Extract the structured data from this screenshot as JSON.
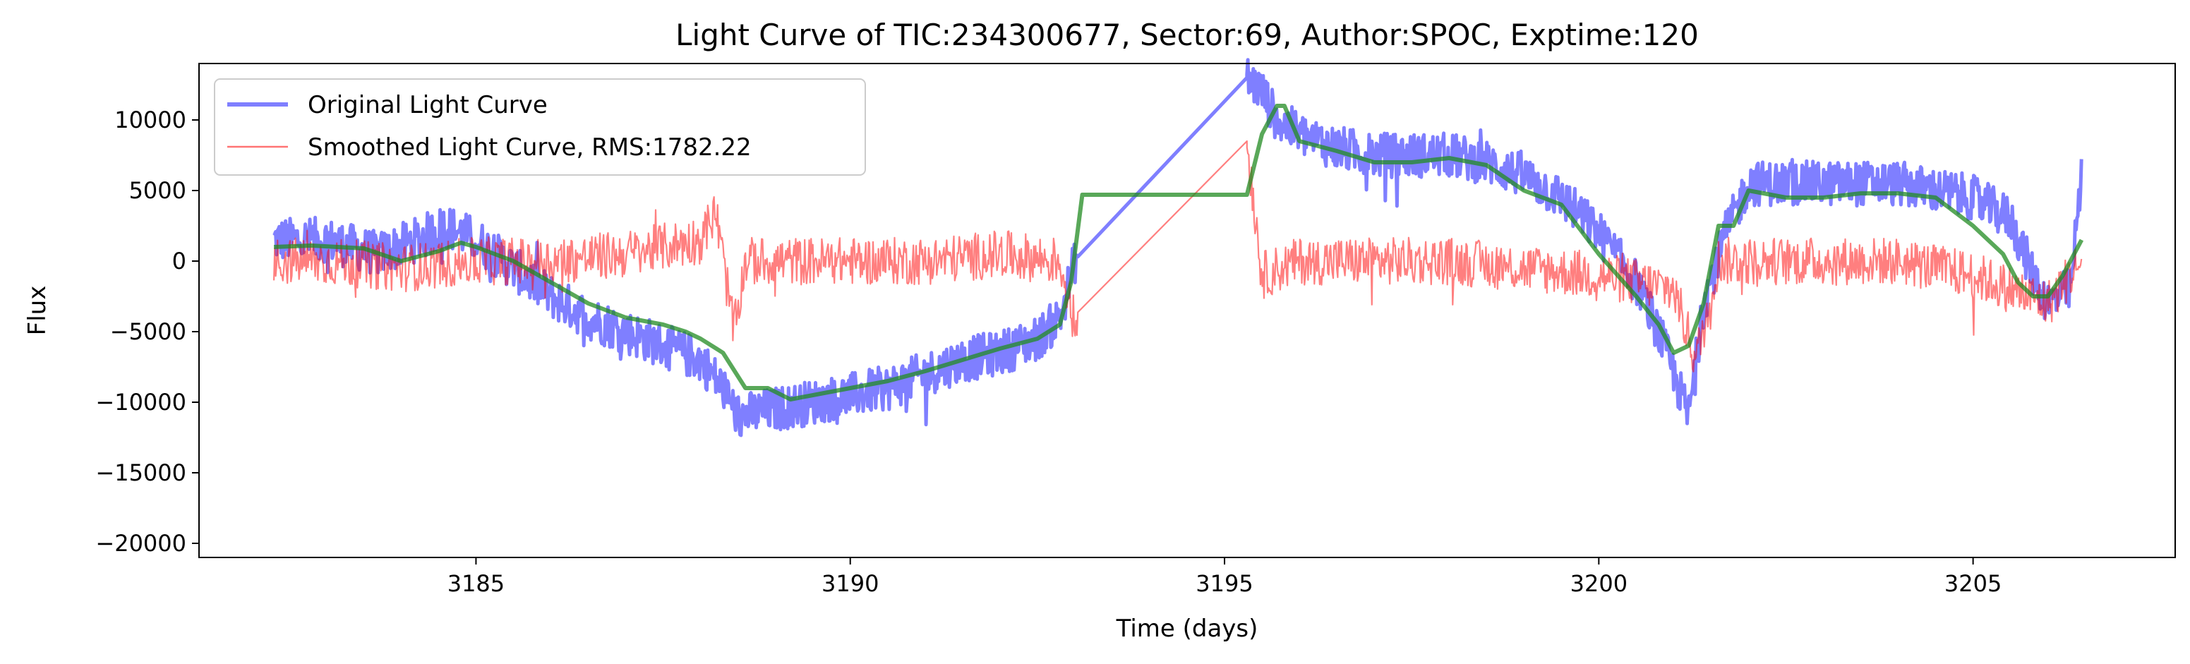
{
  "chart_data": {
    "type": "line",
    "title": "Light Curve of TIC:234300677, Sector:69, Author:SPOC, Exptime:120",
    "xlabel": "Time (days)",
    "ylabel": "Flux",
    "xlim": [
      3181.3,
      3207.7
    ],
    "ylim": [
      -21000,
      14000
    ],
    "x_ticks": [
      3185,
      3190,
      3195,
      3200,
      3205
    ],
    "x_tick_labels": [
      "3185",
      "3190",
      "3195",
      "3200",
      "3205"
    ],
    "y_ticks": [
      -20000,
      -15000,
      -10000,
      -5000,
      0,
      5000,
      10000
    ],
    "y_tick_labels": [
      "−20000",
      "−15000",
      "−10000",
      "−5000",
      "0",
      "5000",
      "10000"
    ],
    "grid": false,
    "legend_position": "top-left",
    "series": [
      {
        "name": "Original Light Curve",
        "color": "#0000ff",
        "noise": 1600,
        "x": [
          3182.3,
          3183.0,
          3183.7,
          3184.2,
          3184.6,
          3185.0,
          3185.5,
          3186.0,
          3186.5,
          3187.0,
          3187.5,
          3188.0,
          3188.3,
          3188.5,
          3189.0,
          3189.5,
          3190.0,
          3190.5,
          3191.0,
          3191.5,
          3192.0,
          3192.5,
          3192.8,
          3193.0,
          3195.3,
          3195.5,
          3195.7,
          3196.0,
          3196.5,
          3197.0,
          3197.5,
          3198.0,
          3198.5,
          3199.0,
          3199.5,
          3200.0,
          3200.5,
          3200.8,
          3201.0,
          3201.2,
          3201.4,
          3201.7,
          3202.0,
          3202.5,
          3203.0,
          3203.5,
          3204.0,
          3204.5,
          3205.0,
          3205.5,
          3205.8,
          3206.0,
          3206.3,
          3206.45
        ],
        "y": [
          1500,
          1500,
          500,
          1500,
          2500,
          1500,
          -500,
          -2500,
          -4000,
          -5000,
          -6000,
          -7000,
          -9000,
          -11000,
          -10500,
          -10000,
          -9500,
          -9000,
          -8000,
          -7000,
          -6500,
          -5500,
          -4000,
          0,
          13000,
          12000,
          10000,
          9000,
          8000,
          7500,
          7500,
          7500,
          7000,
          6000,
          4500,
          2000,
          -1500,
          -5000,
          -8000,
          -11000,
          -3000,
          2000,
          5500,
          5500,
          5500,
          5500,
          5500,
          5000,
          4500,
          3000,
          -1000,
          -3000,
          -2000,
          6000
        ]
      },
      {
        "name": "Smoothed Light Curve, RMS:1782.22",
        "color": "#ff0000",
        "noise": 1700,
        "x": [
          3182.3,
          3183.0,
          3184.0,
          3185.0,
          3186.0,
          3187.0,
          3188.0,
          3188.2,
          3188.45,
          3188.6,
          3189.0,
          3190.0,
          3191.0,
          3192.0,
          3192.8,
          3193.0,
          3195.3,
          3195.5,
          3196.0,
          3197.0,
          3198.0,
          3199.0,
          3200.0,
          3200.5,
          3201.0,
          3201.3,
          3201.6,
          3202.0,
          3203.0,
          3204.0,
          3205.0,
          3205.5,
          3206.0,
          3206.45
        ],
        "y": [
          0,
          0,
          -500,
          0,
          0,
          500,
          1500,
          3500,
          -5000,
          0,
          0,
          0,
          0,
          500,
          0,
          -4500,
          8500,
          -1000,
          0,
          0,
          0,
          -500,
          -1000,
          -1500,
          -2000,
          -7000,
          0,
          0,
          0,
          0,
          -1000,
          -2000,
          -3000,
          0
        ]
      },
      {
        "name": "",
        "color": "#228b22",
        "noise": 0,
        "x": [
          3182.3,
          3182.8,
          3183.5,
          3184.0,
          3184.5,
          3184.8,
          3185.0,
          3185.5,
          3186.0,
          3186.5,
          3187.0,
          3187.5,
          3187.8,
          3188.0,
          3188.3,
          3188.6,
          3188.9,
          3189.2,
          3189.6,
          3190.0,
          3190.5,
          3191.0,
          3191.5,
          3192.0,
          3192.5,
          3192.8,
          3192.95,
          3193.1,
          3195.3,
          3195.5,
          3195.7,
          3195.8,
          3196.0,
          3196.5,
          3197.0,
          3197.5,
          3198.0,
          3198.5,
          3199.0,
          3199.5,
          3200.0,
          3200.5,
          3200.8,
          3201.0,
          3201.2,
          3201.4,
          3201.6,
          3201.8,
          3202.0,
          3202.5,
          3203.0,
          3203.5,
          3204.0,
          3204.5,
          3205.0,
          3205.4,
          3205.6,
          3205.8,
          3206.0,
          3206.2,
          3206.45
        ],
        "y": [
          1000,
          1100,
          900,
          0,
          700,
          1300,
          1000,
          0,
          -1500,
          -3000,
          -4000,
          -4500,
          -5000,
          -5500,
          -6500,
          -9000,
          -9000,
          -9800,
          -9400,
          -9000,
          -8500,
          -7800,
          -7000,
          -6200,
          -5500,
          -4500,
          -1500,
          4700,
          4700,
          9000,
          11000,
          11000,
          8500,
          7800,
          7000,
          7000,
          7300,
          6800,
          5000,
          4000,
          500,
          -2500,
          -4500,
          -6500,
          -6000,
          -3000,
          2500,
          2500,
          5000,
          4500,
          4500,
          4800,
          4800,
          4500,
          2500,
          500,
          -1500,
          -2500,
          -2500,
          -1000,
          1500
        ]
      }
    ]
  }
}
